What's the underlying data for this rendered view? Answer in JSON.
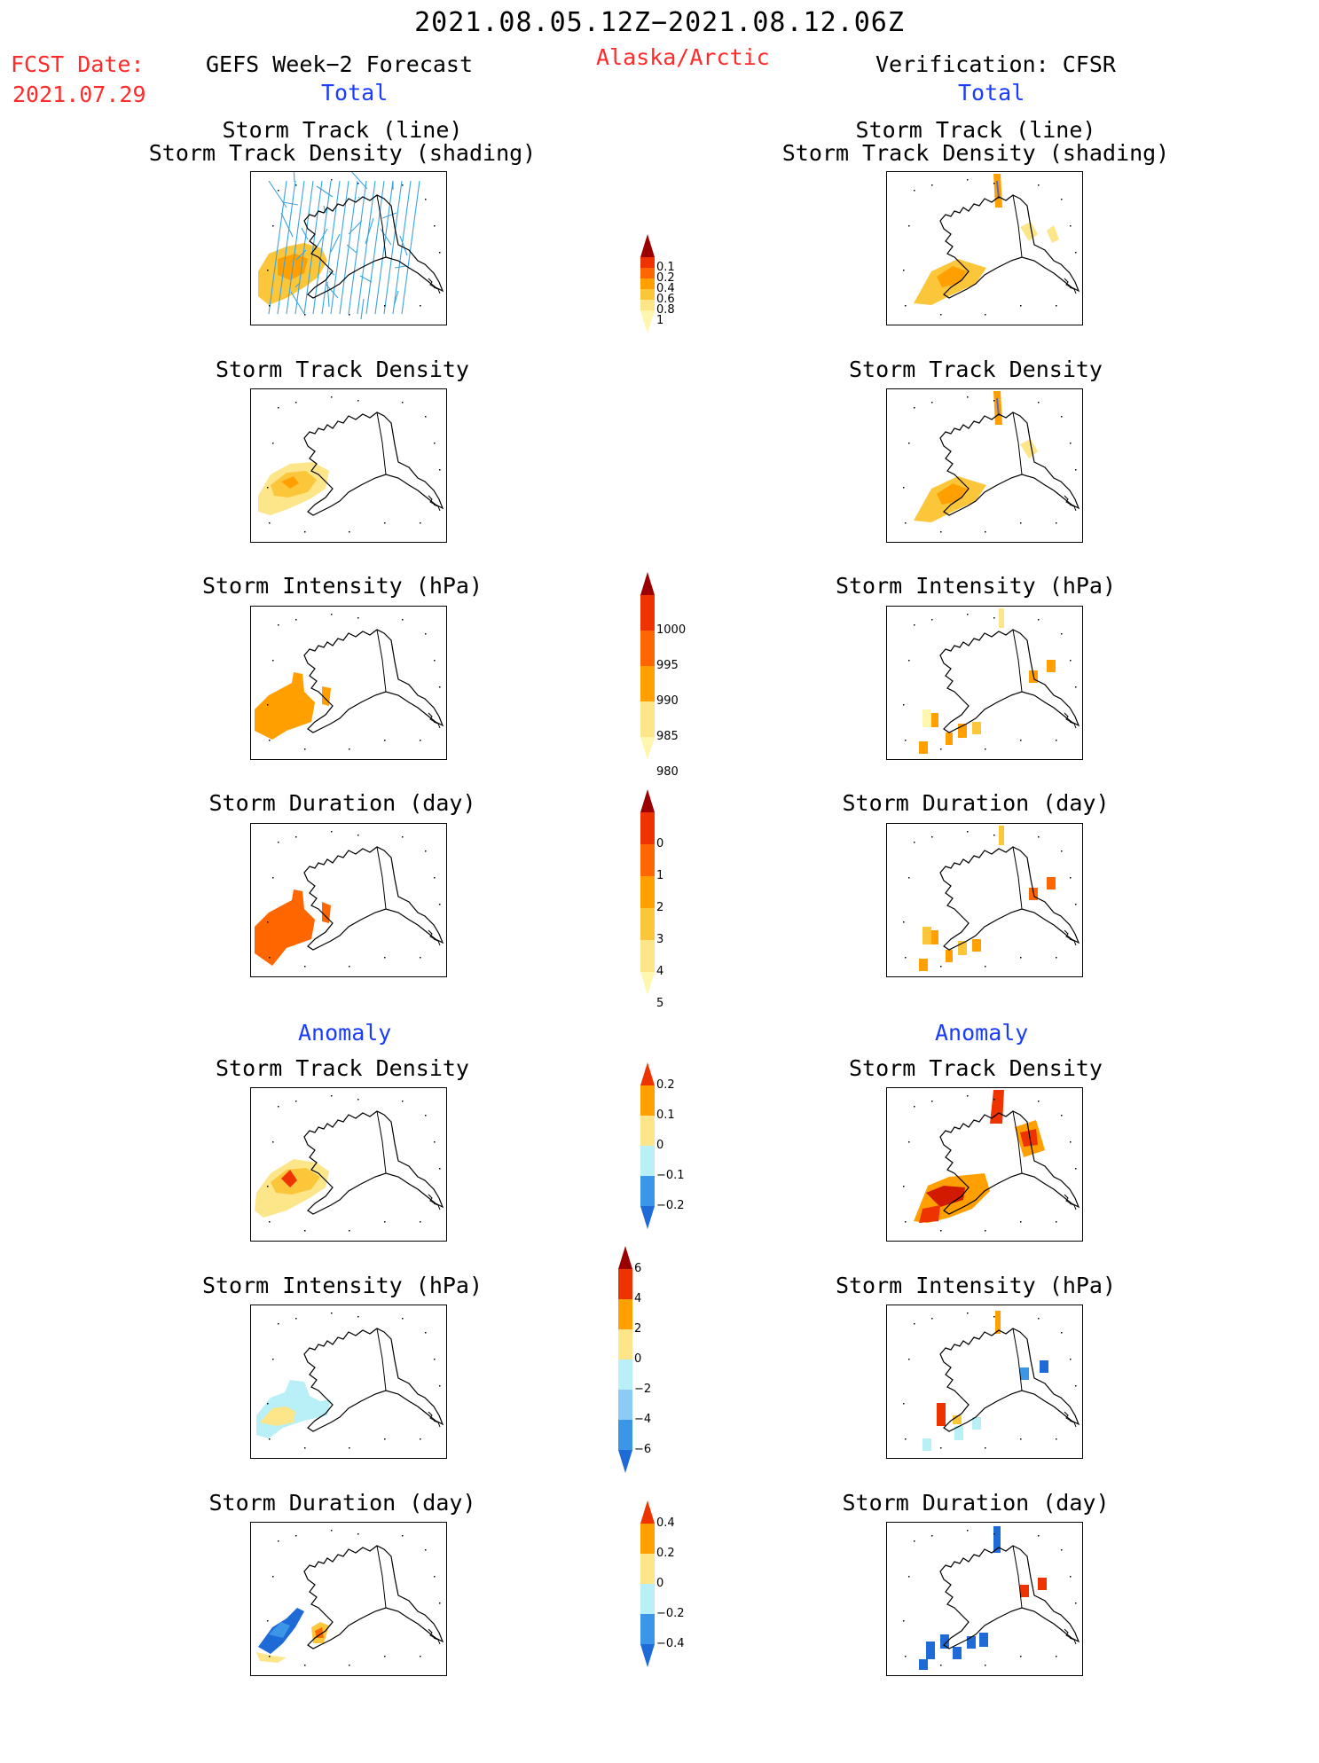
{
  "header": {
    "period": "2021.08.05.12Z−2021.08.12.06Z",
    "region": "Alaska/Arctic",
    "fcst_label": "FCST Date:",
    "fcst_date": "2021.07.29",
    "left_title": "GEFS Week−2 Forecast",
    "right_title": "Verification: CFSR",
    "total_label": "Total",
    "anomaly_label": "Anomaly"
  },
  "panel_titles": {
    "track_line": "Storm Track (line)",
    "track_shading": "Storm Track Density (shading)",
    "density": "Storm Track Density",
    "intensity": "Storm Intensity (hPa)",
    "duration": "Storm Duration (day)"
  },
  "colors": {
    "brown": "#9b0000",
    "darkred": "#d11a00",
    "red": "#ee3300",
    "orange_red": "#ff6600",
    "orange": "#ffa000",
    "amber": "#fcc63a",
    "yellow": "#fde68a",
    "paleyellow": "#fff6b0",
    "cyan": "#b9f0f7",
    "lightblue": "#8ccbf5",
    "blue": "#3c96e8",
    "darkblue": "#1e6ad6",
    "track": "#3aa4e0"
  },
  "chart_data": [
    {
      "type": "heatmap",
      "title": "Storm Track Density",
      "section": "Total",
      "units": "",
      "colorbar": {
        "levels": [
          0.1,
          0.2,
          0.4,
          0.6,
          0.8,
          1
        ],
        "labels": [
          "0.1",
          "0.2",
          "0.4",
          "0.6",
          "0.8",
          "1"
        ],
        "colors": [
          "#fff6b0",
          "#fde68a",
          "#fcc63a",
          "#ffa000",
          "#ff6600",
          "#ee3300",
          "#9b0000"
        ]
      }
    },
    {
      "type": "heatmap",
      "title": "Storm Intensity (hPa)",
      "section": "Total",
      "units": "hPa",
      "colorbar": {
        "levels": [
          1000,
          995,
          990,
          985,
          980
        ],
        "labels": [
          "1000",
          "995",
          "990",
          "985",
          "980"
        ],
        "colors": [
          "#fff6b0",
          "#fde68a",
          "#ffa000",
          "#ff6600",
          "#ee3300",
          "#9b0000"
        ]
      }
    },
    {
      "type": "heatmap",
      "title": "Storm Duration (day)",
      "section": "Total",
      "units": "day",
      "colorbar": {
        "levels": [
          0,
          1,
          2,
          3,
          4,
          5
        ],
        "labels": [
          "0",
          "1",
          "2",
          "3",
          "4",
          "5"
        ],
        "colors": [
          "#fff6b0",
          "#fde68a",
          "#fcc63a",
          "#ffa000",
          "#ff6600",
          "#ee3300",
          "#9b0000"
        ]
      }
    },
    {
      "type": "heatmap",
      "title": "Storm Track Density",
      "section": "Anomaly",
      "units": "",
      "colorbar": {
        "levels": [
          -0.2,
          -0.1,
          0,
          0.1,
          0.2
        ],
        "labels": [
          "0.2",
          "0.1",
          "0",
          "−0.1",
          "−0.2"
        ],
        "colors": [
          "#1e6ad6",
          "#3c96e8",
          "#b9f0f7",
          "#fde68a",
          "#ffa000",
          "#ee3300"
        ]
      }
    },
    {
      "type": "heatmap",
      "title": "Storm Intensity (hPa)",
      "section": "Anomaly",
      "units": "hPa",
      "colorbar": {
        "levels": [
          -6,
          -4,
          -2,
          0,
          2,
          4,
          6
        ],
        "labels": [
          "6",
          "4",
          "2",
          "0",
          "−2",
          "−4",
          "−6"
        ],
        "colors": [
          "#1e6ad6",
          "#3c96e8",
          "#8ccbf5",
          "#b9f0f7",
          "#fde68a",
          "#ffa000",
          "#ee3300",
          "#9b0000"
        ]
      }
    },
    {
      "type": "heatmap",
      "title": "Storm Duration (day)",
      "section": "Anomaly",
      "units": "day",
      "colorbar": {
        "levels": [
          -0.4,
          -0.2,
          0,
          0.2,
          0.4
        ],
        "labels": [
          "0.4",
          "0.2",
          "0",
          "−0.2",
          "−0.4"
        ],
        "colors": [
          "#1e6ad6",
          "#3c96e8",
          "#b9f0f7",
          "#fde68a",
          "#ffa000",
          "#ee3300"
        ]
      }
    }
  ]
}
